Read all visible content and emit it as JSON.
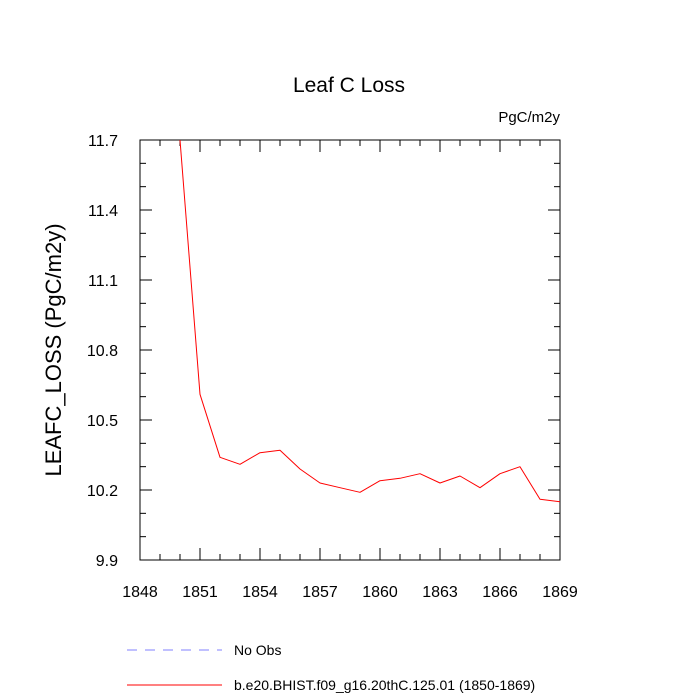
{
  "chart_data": {
    "type": "line",
    "title": "Leaf C Loss",
    "units": "PgC/m2y",
    "xlabel": "",
    "ylabel": "LEAFC_LOSS  (PgC/m2y)",
    "xlim": [
      1848,
      1869
    ],
    "ylim": [
      9.9,
      11.7
    ],
    "xticks": [
      "1848",
      "1851",
      "1854",
      "1857",
      "1860",
      "1863",
      "1866",
      "1869"
    ],
    "yticks": [
      "9.9",
      "10.2",
      "10.5",
      "10.8",
      "11.1",
      "11.4",
      "11.7"
    ],
    "grid": false,
    "series": [
      {
        "name": "b.e20.BHIST.f09_g16.20thC.125.01 (1850-1869)",
        "color": "#ff0000",
        "style": "solid",
        "x": [
          1850,
          1851,
          1852,
          1853,
          1854,
          1855,
          1856,
          1857,
          1858,
          1859,
          1860,
          1861,
          1862,
          1863,
          1864,
          1865,
          1866,
          1867,
          1868,
          1869
        ],
        "y": [
          11.7,
          10.61,
          10.34,
          10.31,
          10.36,
          10.37,
          10.29,
          10.23,
          10.21,
          10.19,
          10.24,
          10.25,
          10.27,
          10.23,
          10.26,
          10.21,
          10.27,
          10.3,
          10.16,
          10.15
        ]
      }
    ],
    "legend": {
      "placement": "bottom-left",
      "entries": [
        {
          "label": "No Obs",
          "color": "#8080ff",
          "style": "dashed"
        },
        {
          "label": "b.e20.BHIST.f09_g16.20thC.125.01 (1850-1869)",
          "color": "#ff0000",
          "style": "solid"
        }
      ]
    }
  }
}
